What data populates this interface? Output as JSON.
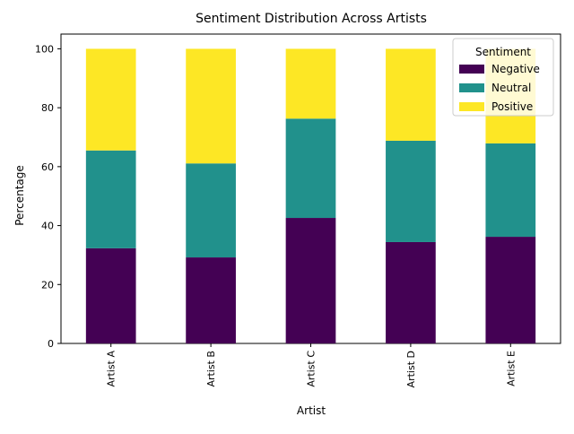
{
  "chart_data": {
    "type": "bar",
    "stacked": true,
    "title": "Sentiment Distribution Across Artists",
    "xlabel": "Artist",
    "ylabel": "Percentage",
    "categories": [
      "Artist A",
      "Artist B",
      "Artist C",
      "Artist D",
      "Artist E"
    ],
    "series": [
      {
        "name": "Negative",
        "color": "#440154",
        "values": [
          32.3,
          29.2,
          42.6,
          34.4,
          36.2
        ]
      },
      {
        "name": "Neutral",
        "color": "#21918c",
        "values": [
          33.2,
          31.9,
          33.7,
          34.4,
          31.7
        ]
      },
      {
        "name": "Positive",
        "color": "#fde725",
        "values": [
          34.5,
          38.9,
          23.7,
          31.2,
          32.1
        ]
      }
    ],
    "ylim": [
      0,
      105
    ],
    "yticks": [
      0,
      20,
      40,
      60,
      80,
      100
    ],
    "grid": false,
    "legend": {
      "title": "Sentiment",
      "position": "top-right"
    }
  }
}
